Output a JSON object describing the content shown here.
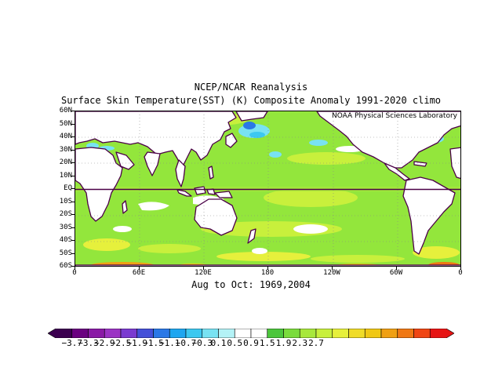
{
  "title": {
    "line1": "NCEP/NCAR Reanalysis",
    "line2": "Surface Skin Temperature(SST) (K) Composite Anomaly 1991-2020 climo"
  },
  "map": {
    "lab_label": "NOAA Physical Sciences Laboratory",
    "lat_labels": [
      "60N",
      "50N",
      "40N",
      "30N",
      "20N",
      "10N",
      "EQ",
      "10S",
      "20S",
      "30S",
      "40S",
      "50S",
      "60S"
    ],
    "lon_labels": [
      "0",
      "60E",
      "120E",
      "180",
      "120W",
      "60W",
      "0"
    ],
    "colors": {
      "land": "#ffffff",
      "coast": "#4b0048",
      "base_anomaly": "#93e63c"
    }
  },
  "period_label": "Aug to Oct: 1969,2004",
  "colorbar": {
    "labels": [
      "-3.7",
      "-3.3",
      "-2.9",
      "-2.5",
      "-1.9",
      "-1.5",
      "-1.1",
      "-0.7",
      "-0.3",
      "0.1",
      "0.5",
      "0.9",
      "1.5",
      "1.9",
      "2.3",
      "2.7"
    ],
    "colors": [
      "#3c0050",
      "#6a0080",
      "#8a1aa6",
      "#9b34c4",
      "#7a3ad0",
      "#4450d8",
      "#2a78e6",
      "#1ea6f0",
      "#3cc8f0",
      "#78e2f2",
      "#b4f2f6",
      "#ffffff",
      "#ffffff",
      "#4cc63c",
      "#7adc3c",
      "#a8e83c",
      "#c8f03c",
      "#e6f03c",
      "#f0dc28",
      "#f0c814",
      "#f0a014",
      "#f07814",
      "#f04614",
      "#e61414"
    ]
  }
}
